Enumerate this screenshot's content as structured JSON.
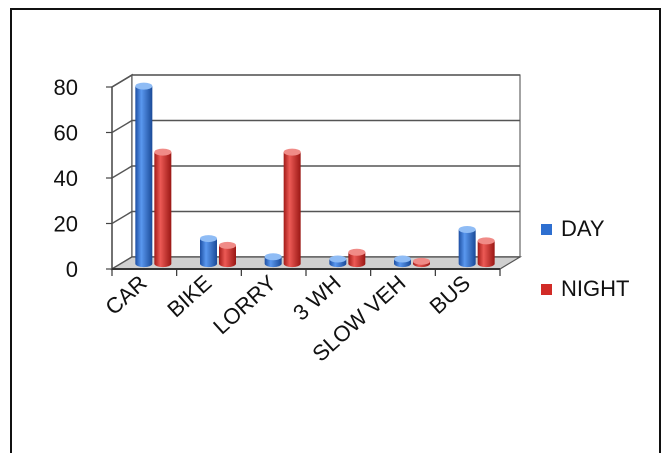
{
  "chart_data": {
    "type": "bar",
    "categories": [
      "CAR",
      "BIKE",
      "LORRY",
      "3 WH",
      "SLOW VEH",
      "BUS"
    ],
    "series": [
      {
        "name": "DAY",
        "values": [
          78,
          11,
          3,
          2,
          2,
          15
        ],
        "color": "#2e6fd0"
      },
      {
        "name": "NIGHT",
        "values": [
          49,
          8,
          49,
          5,
          1,
          10
        ],
        "color": "#d12b27"
      }
    ],
    "yticks": [
      "80",
      "60",
      "40",
      "20",
      "0"
    ],
    "ylim": [
      0,
      80
    ],
    "grid": true,
    "legend_position": "right",
    "style": "3d-cylinder"
  }
}
